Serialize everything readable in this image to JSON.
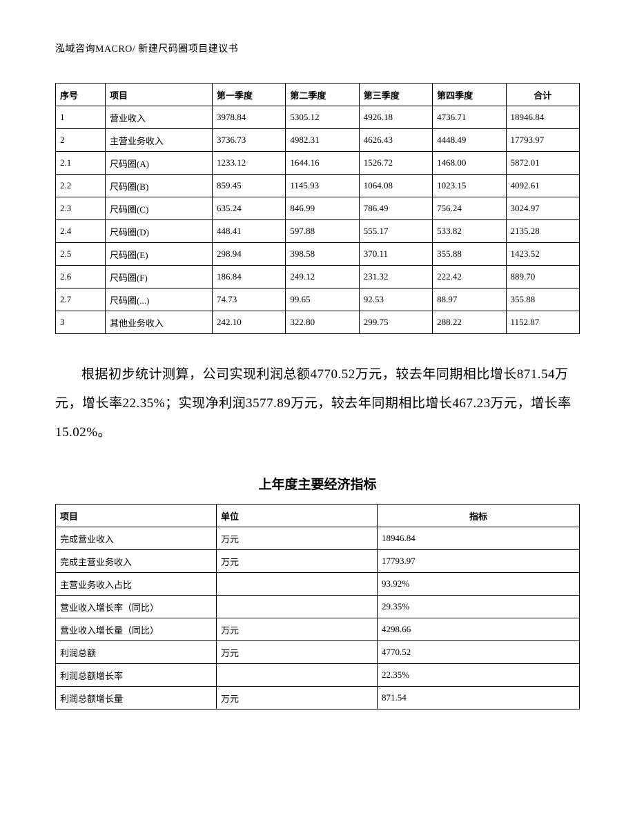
{
  "header": "泓域咨询MACRO/   新建尺码圈项目建议书",
  "table1": {
    "columns": [
      "序号",
      "项目",
      "第一季度",
      "第二季度",
      "第三季度",
      "第四季度",
      "合计"
    ],
    "rows": [
      [
        "1",
        "营业收入",
        "3978.84",
        "5305.12",
        "4926.18",
        "4736.71",
        "18946.84"
      ],
      [
        "2",
        "主营业务收入",
        "3736.73",
        "4982.31",
        "4626.43",
        "4448.49",
        "17793.97"
      ],
      [
        "2.1",
        "尺码圈(A)",
        "1233.12",
        "1644.16",
        "1526.72",
        "1468.00",
        "5872.01"
      ],
      [
        "2.2",
        "尺码圈(B)",
        "859.45",
        "1145.93",
        "1064.08",
        "1023.15",
        "4092.61"
      ],
      [
        "2.3",
        "尺码圈(C)",
        "635.24",
        "846.99",
        "786.49",
        "756.24",
        "3024.97"
      ],
      [
        "2.4",
        "尺码圈(D)",
        "448.41",
        "597.88",
        "555.17",
        "533.82",
        "2135.28"
      ],
      [
        "2.5",
        "尺码圈(E)",
        "298.94",
        "398.58",
        "370.11",
        "355.88",
        "1423.52"
      ],
      [
        "2.6",
        "尺码圈(F)",
        "186.84",
        "249.12",
        "231.32",
        "222.42",
        "889.70"
      ],
      [
        "2.7",
        "尺码圈(...)",
        "74.73",
        "99.65",
        "92.53",
        "88.97",
        "355.88"
      ],
      [
        "3",
        "其他业务收入",
        "242.10",
        "322.80",
        "299.75",
        "288.22",
        "1152.87"
      ]
    ]
  },
  "paragraph": "根据初步统计测算，公司实现利润总额4770.52万元，较去年同期相比增长871.54万元，增长率22.35%；实现净利润3577.89万元，较去年同期相比增长467.23万元，增长率15.02%。",
  "table2_title": "上年度主要经济指标",
  "table2": {
    "columns": [
      "项目",
      "单位",
      "指标"
    ],
    "rows": [
      [
        "完成营业收入",
        "万元",
        "18946.84"
      ],
      [
        "完成主营业务收入",
        "万元",
        "17793.97"
      ],
      [
        "主营业务收入占比",
        "",
        "93.92%"
      ],
      [
        "营业收入增长率（同比）",
        "",
        "29.35%"
      ],
      [
        "营业收入增长量（同比）",
        "万元",
        "4298.66"
      ],
      [
        "利润总额",
        "万元",
        "4770.52"
      ],
      [
        "利润总额增长率",
        "",
        "22.35%"
      ],
      [
        "利润总额增长量",
        "万元",
        "871.54"
      ]
    ]
  }
}
